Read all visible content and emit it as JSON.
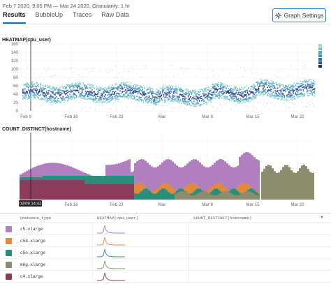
{
  "header": {
    "time_range": "Feb 7 2020, 9:05 PM — Mar 24 2020, Granularity: 1 hr",
    "graph_settings_label": "Graph Settings"
  },
  "tabs": [
    {
      "label": "Results",
      "active": true
    },
    {
      "label": "BubbleUp",
      "active": false
    },
    {
      "label": "Traces",
      "active": false
    },
    {
      "label": "Raw Data",
      "active": false
    }
  ],
  "heatmap": {
    "title": "HEATMAP(cpu_user)",
    "y_ticks": [
      "160",
      "140",
      "120",
      "100",
      "80",
      "60",
      "40",
      "20",
      "0"
    ],
    "x_ticks": [
      "Feb 9",
      "Feb 16",
      "Feb 23",
      "Mar",
      "Mar 8",
      "Mar 15",
      "Mar 22"
    ],
    "legend_colors": [
      "#1d2b6e",
      "#2b4c94",
      "#2f6fb0",
      "#3a8fbf",
      "#4aa8c2",
      "#6cc3c5",
      "#9fdcd0"
    ]
  },
  "count_distinct": {
    "title": "COUNT_DISTINCT(hostname)",
    "x_ticks": [
      "Feb 16",
      "Feb 23",
      "Mar",
      "Mar 8",
      "Mar 15",
      "Mar 22"
    ],
    "cursor_label": "02/09 14:42"
  },
  "table": {
    "headers": [
      "instance_type",
      "HEATMAP(cpu_user)",
      "COUNT_DISTINCT(hostname)"
    ],
    "rows": [
      {
        "name": "c5.xlarge",
        "color": "#b07fc0"
      },
      {
        "name": "c5d.xlarge",
        "color": "#e08a3c"
      },
      {
        "name": "c5n.xlarge",
        "color": "#2a8f7a"
      },
      {
        "name": "m6g.xlarge",
        "color": "#8c8c6e"
      },
      {
        "name": "c4.xlarge",
        "color": "#8b3a5a"
      }
    ]
  }
}
